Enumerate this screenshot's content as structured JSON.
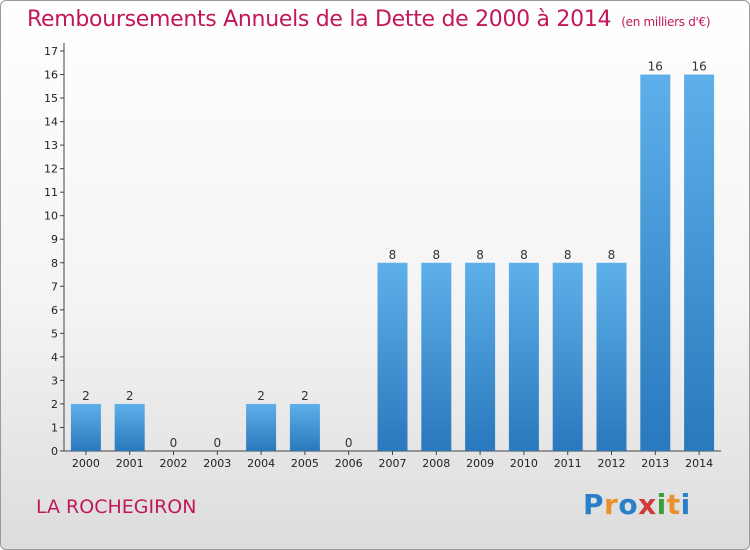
{
  "header": {
    "title": "Remboursements Annuels de la Dette de 2000 à 2014",
    "subtitle": "(en milliers d'€)"
  },
  "footer": {
    "commune": "LA ROCHEGIRON",
    "logo_letters": [
      {
        "ch": "P",
        "color": "#2a7fc9"
      },
      {
        "ch": "r",
        "color": "#e8912d"
      },
      {
        "ch": "o",
        "color": "#2a7fc9"
      },
      {
        "ch": "x",
        "color": "#d23a3a"
      },
      {
        "ch": "i",
        "color": "#3aa13a"
      },
      {
        "ch": "t",
        "color": "#e8912d"
      },
      {
        "ch": "i",
        "color": "#2a7fc9"
      }
    ]
  },
  "chart_data": {
    "type": "bar",
    "title": "Remboursements Annuels de la Dette de 2000 à 2014",
    "subtitle": "(en milliers d'€)",
    "categories": [
      "2000",
      "2001",
      "2002",
      "2003",
      "2004",
      "2005",
      "2006",
      "2007",
      "2008",
      "2009",
      "2010",
      "2011",
      "2012",
      "2013",
      "2014"
    ],
    "values": [
      2,
      2,
      0,
      0,
      2,
      2,
      0,
      8,
      8,
      8,
      8,
      8,
      8,
      16,
      16
    ],
    "data_labels": [
      "2",
      "2",
      "0",
      "0",
      "2",
      "2",
      "0",
      "8",
      "8",
      "8",
      "8",
      "8",
      "8",
      "16",
      "16"
    ],
    "yticks": [
      "0",
      "1",
      "2",
      "3",
      "4",
      "5",
      "6",
      "7",
      "8",
      "9",
      "10",
      "11",
      "12",
      "13",
      "14",
      "15",
      "16",
      "17"
    ],
    "ylim": [
      0,
      17
    ],
    "bar_color": "#3d95d8",
    "grid": false
  }
}
